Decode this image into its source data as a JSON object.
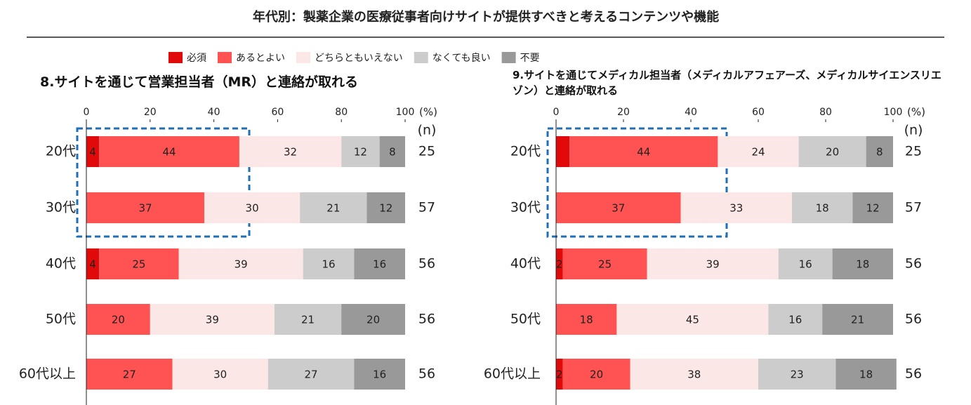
{
  "title": "年代別：製薬企業の医療従事者向けサイトが提供すべきと考えるコンテンツや機能",
  "legend": {
    "position": "top",
    "items": [
      {
        "name": "必須",
        "color": "#e00a0a"
      },
      {
        "name": "あるとよい",
        "color": "#ff5252"
      },
      {
        "name": "どちらともいえない",
        "color": "#fbe7e5"
      },
      {
        "name": "なくても良い",
        "color": "#cccccc"
      },
      {
        "name": "不要",
        "color": "#999999"
      }
    ]
  },
  "chart_data": [
    {
      "type": "stacked_bar_horizontal",
      "title": "8.サイトを通じて営業担当者（MR）と連絡が取れる",
      "x_unit": "(%)",
      "n_label": "(n)",
      "categories": [
        "20代",
        "30代",
        "40代",
        "50代",
        "60代以上"
      ],
      "n": [
        25,
        57,
        56,
        56,
        56
      ],
      "xlim": [
        0,
        100
      ],
      "xticks": [
        0,
        20,
        40,
        60,
        80,
        100
      ],
      "series": [
        {
          "values": [
            4,
            0,
            4,
            0,
            0
          ],
          "value_labels": [
            "4",
            null,
            "4",
            null,
            null
          ]
        },
        {
          "values": [
            44,
            37,
            25,
            20,
            27
          ]
        },
        {
          "values": [
            32,
            30,
            39,
            39,
            30
          ]
        },
        {
          "values": [
            12,
            21,
            16,
            21,
            27
          ]
        },
        {
          "values": [
            8,
            12,
            16,
            20,
            16
          ]
        }
      ]
    },
    {
      "type": "stacked_bar_horizontal",
      "title": "9.サイトを通じてメディカル担当者（メディカルアフェアーズ、メディカルサイエンスリエゾン）と連絡が取れる",
      "x_unit": "(%)",
      "n_label": "(n)",
      "categories": [
        "20代",
        "30代",
        "40代",
        "50代",
        "60代以上"
      ],
      "n": [
        25,
        57,
        56,
        56,
        56
      ],
      "xlim": [
        0,
        100
      ],
      "xticks": [
        0,
        20,
        40,
        60,
        80,
        100
      ],
      "series": [
        {
          "values": [
            4,
            0,
            2,
            0,
            2
          ],
          "value_labels": [
            null,
            null,
            "2",
            null,
            "2"
          ]
        },
        {
          "values": [
            44,
            37,
            25,
            18,
            20
          ]
        },
        {
          "values": [
            24,
            33,
            39,
            45,
            38
          ]
        },
        {
          "values": [
            20,
            18,
            16,
            16,
            23
          ]
        },
        {
          "values": [
            8,
            12,
            18,
            21,
            18
          ]
        }
      ]
    }
  ]
}
